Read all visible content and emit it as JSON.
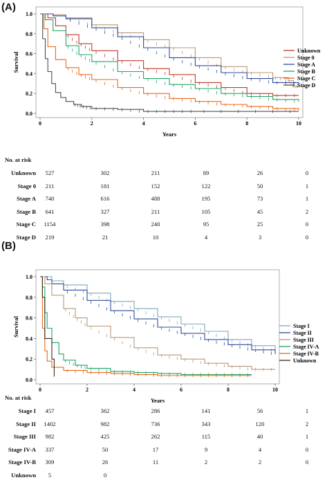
{
  "chart_data": [
    {
      "panel": "(A)",
      "type": "line",
      "xlabel": "Years",
      "ylabel": "Survival",
      "xlim": [
        0,
        10
      ],
      "ylim": [
        0,
        1
      ],
      "xticks": [
        "0",
        "2",
        "4",
        "6",
        "8",
        "10"
      ],
      "yticks": [
        "0.0",
        "0.2",
        "0.4",
        "0.6",
        "0.8",
        "1.0"
      ],
      "legend_position": "right",
      "series": [
        {
          "name": "Unknown",
          "color": "#c0392b",
          "points": [
            [
              0,
              1
            ],
            [
              0.3,
              0.96
            ],
            [
              0.6,
              0.88
            ],
            [
              1,
              0.79
            ],
            [
              1.5,
              0.7
            ],
            [
              2,
              0.63
            ],
            [
              3,
              0.53
            ],
            [
              4,
              0.45
            ],
            [
              5,
              0.39
            ],
            [
              6,
              0.31
            ],
            [
              7,
              0.26
            ],
            [
              8,
              0.2
            ],
            [
              9,
              0.18
            ],
            [
              10,
              0.18
            ]
          ]
        },
        {
          "name": "Stage 0",
          "color": "#b8977a",
          "points": [
            [
              0,
              1
            ],
            [
              0.5,
              0.99
            ],
            [
              1,
              0.96
            ],
            [
              2,
              0.89
            ],
            [
              3,
              0.81
            ],
            [
              4,
              0.74
            ],
            [
              5,
              0.66
            ],
            [
              6,
              0.56
            ],
            [
              7,
              0.47
            ],
            [
              8,
              0.41
            ],
            [
              9,
              0.36
            ],
            [
              9.6,
              0.33
            ],
            [
              9.8,
              0.27
            ],
            [
              10,
              0.27
            ]
          ]
        },
        {
          "name": "Stage A",
          "color": "#2e4c99",
          "points": [
            [
              0,
              1
            ],
            [
              0.5,
              0.98
            ],
            [
              1,
              0.95
            ],
            [
              2,
              0.86
            ],
            [
              3,
              0.77
            ],
            [
              4,
              0.66
            ],
            [
              5,
              0.56
            ],
            [
              6,
              0.48
            ],
            [
              7,
              0.41
            ],
            [
              8,
              0.35
            ],
            [
              9,
              0.31
            ],
            [
              10,
              0.3
            ]
          ]
        },
        {
          "name": "Stage B",
          "color": "#1aa866",
          "points": [
            [
              0,
              1
            ],
            [
              0.2,
              0.94
            ],
            [
              0.5,
              0.83
            ],
            [
              1,
              0.68
            ],
            [
              1.5,
              0.59
            ],
            [
              2,
              0.52
            ],
            [
              3,
              0.42
            ],
            [
              4,
              0.35
            ],
            [
              5,
              0.29
            ],
            [
              6,
              0.25
            ],
            [
              7,
              0.2
            ],
            [
              8,
              0.17
            ],
            [
              9,
              0.14
            ],
            [
              10,
              0.12
            ]
          ]
        },
        {
          "name": "Stage C",
          "color": "#e8691b",
          "points": [
            [
              0,
              1
            ],
            [
              0.15,
              0.85
            ],
            [
              0.3,
              0.67
            ],
            [
              0.6,
              0.54
            ],
            [
              1,
              0.46
            ],
            [
              1.5,
              0.39
            ],
            [
              2,
              0.34
            ],
            [
              3,
              0.26
            ],
            [
              4,
              0.2
            ],
            [
              5,
              0.15
            ],
            [
              6,
              0.12
            ],
            [
              7,
              0.09
            ],
            [
              8,
              0.07
            ],
            [
              9,
              0.05
            ],
            [
              10,
              0.03
            ]
          ]
        },
        {
          "name": "Stage D",
          "color": "#4d4d4d",
          "points": [
            [
              0,
              1
            ],
            [
              0.1,
              0.75
            ],
            [
              0.2,
              0.55
            ],
            [
              0.3,
              0.42
            ],
            [
              0.45,
              0.3
            ],
            [
              0.6,
              0.21
            ],
            [
              0.8,
              0.16
            ],
            [
              1,
              0.12
            ],
            [
              1.3,
              0.09
            ],
            [
              1.6,
              0.07
            ],
            [
              2,
              0.05
            ],
            [
              3,
              0.04
            ],
            [
              4,
              0.02
            ],
            [
              5,
              0.02
            ],
            [
              6,
              0.02
            ],
            [
              8,
              0.02
            ],
            [
              10,
              0.02
            ]
          ]
        }
      ]
    },
    {
      "panel": "(B)",
      "type": "line",
      "xlabel": "Years",
      "ylabel": "Survival",
      "xlim": [
        0,
        10
      ],
      "ylim": [
        0,
        1
      ],
      "xticks": [
        "0",
        "2",
        "4",
        "6",
        "8",
        "10"
      ],
      "yticks": [
        "0.0",
        "0.2",
        "0.4",
        "0.6",
        "0.8",
        "1.0"
      ],
      "legend_position": "right",
      "series": [
        {
          "name": "Stage I",
          "color": "#7fa8b8",
          "points": [
            [
              0,
              1
            ],
            [
              0.5,
              0.96
            ],
            [
              1,
              0.92
            ],
            [
              2,
              0.84
            ],
            [
              3,
              0.76
            ],
            [
              4,
              0.69
            ],
            [
              5,
              0.61
            ],
            [
              6,
              0.54
            ],
            [
              7,
              0.47
            ],
            [
              8,
              0.39
            ],
            [
              9,
              0.33
            ],
            [
              10,
              0.28
            ]
          ]
        },
        {
          "name": "Stage II",
          "color": "#2e4c99",
          "points": [
            [
              0,
              1
            ],
            [
              0.3,
              0.97
            ],
            [
              0.5,
              0.93
            ],
            [
              1,
              0.87
            ],
            [
              2,
              0.77
            ],
            [
              3,
              0.67
            ],
            [
              4,
              0.59
            ],
            [
              5,
              0.51
            ],
            [
              6,
              0.45
            ],
            [
              7,
              0.39
            ],
            [
              8,
              0.34
            ],
            [
              9,
              0.29
            ],
            [
              10,
              0.25
            ]
          ]
        },
        {
          "name": "Stage III",
          "color": "#b8977a",
          "points": [
            [
              0,
              1
            ],
            [
              0.2,
              0.93
            ],
            [
              0.5,
              0.82
            ],
            [
              1,
              0.69
            ],
            [
              1.5,
              0.6
            ],
            [
              2,
              0.52
            ],
            [
              3,
              0.41
            ],
            [
              4,
              0.31
            ],
            [
              5,
              0.24
            ],
            [
              6,
              0.2
            ],
            [
              7,
              0.16
            ],
            [
              8,
              0.13
            ],
            [
              9,
              0.1
            ],
            [
              10,
              0.1
            ]
          ]
        },
        {
          "name": "Stage IV-A",
          "color": "#1aa866",
          "points": [
            [
              0,
              1
            ],
            [
              0.1,
              0.9
            ],
            [
              0.2,
              0.65
            ],
            [
              0.3,
              0.5
            ],
            [
              0.5,
              0.36
            ],
            [
              0.8,
              0.25
            ],
            [
              1,
              0.19
            ],
            [
              1.5,
              0.14
            ],
            [
              2,
              0.11
            ],
            [
              3,
              0.08
            ],
            [
              4,
              0.07
            ],
            [
              5,
              0.06
            ],
            [
              6,
              0.05
            ],
            [
              7,
              0.05
            ],
            [
              8,
              0.05
            ],
            [
              9,
              0.05
            ]
          ]
        },
        {
          "name": "Stage IV-B",
          "color": "#e8691b",
          "points": [
            [
              0,
              1
            ],
            [
              0.1,
              0.5
            ],
            [
              0.2,
              0.28
            ],
            [
              0.3,
              0.18
            ],
            [
              0.5,
              0.12
            ],
            [
              1,
              0.09
            ],
            [
              2,
              0.07
            ],
            [
              3,
              0.06
            ],
            [
              4,
              0.05
            ],
            [
              5,
              0.04
            ],
            [
              6,
              0.04
            ],
            [
              7,
              0.04
            ],
            [
              8,
              0.04
            ],
            [
              9,
              0.04
            ]
          ]
        },
        {
          "name": "Unknown",
          "color": "#3a2a1a",
          "points": [
            [
              0,
              1
            ],
            [
              0.1,
              0.8
            ],
            [
              0.2,
              0.4
            ],
            [
              0.4,
              0.4
            ],
            [
              0.5,
              0.2
            ],
            [
              0.6,
              0.2
            ],
            [
              0.6,
              0.03
            ]
          ]
        }
      ]
    }
  ],
  "risk_tables": [
    {
      "title": "No. at risk",
      "rows": [
        {
          "label": "Unknown",
          "values": [
            "527",
            "302",
            "211",
            "89",
            "26",
            "0"
          ]
        },
        {
          "label": "Stage 0",
          "values": [
            "211",
            "181",
            "152",
            "122",
            "50",
            "1"
          ]
        },
        {
          "label": "Stage A",
          "values": [
            "740",
            "616",
            "488",
            "195",
            "73",
            "1"
          ]
        },
        {
          "label": "Stage B",
          "values": [
            "641",
            "327",
            "211",
            "105",
            "45",
            "2"
          ]
        },
        {
          "label": "Stage C",
          "values": [
            "1154",
            "398",
            "240",
            "95",
            "25",
            "0"
          ]
        },
        {
          "label": "Stage D",
          "values": [
            "219",
            "21",
            "10",
            "4",
            "3",
            "0"
          ]
        }
      ]
    },
    {
      "title": "No. at risk",
      "rows": [
        {
          "label": "Stage I",
          "values": [
            "457",
            "362",
            "286",
            "141",
            "56",
            "1"
          ]
        },
        {
          "label": "Stage II",
          "values": [
            "1402",
            "982",
            "736",
            "343",
            "120",
            "2"
          ]
        },
        {
          "label": "Stage III",
          "values": [
            "982",
            "425",
            "262",
            "115",
            "40",
            "1"
          ]
        },
        {
          "label": "Stage IV-A",
          "values": [
            "337",
            "50",
            "17",
            "9",
            "4",
            "0"
          ]
        },
        {
          "label": "Stage IV-B",
          "values": [
            "309",
            "26",
            "11",
            "2",
            "2",
            "0"
          ]
        },
        {
          "label": "Unknown",
          "values": [
            "5",
            "0"
          ]
        }
      ]
    }
  ]
}
